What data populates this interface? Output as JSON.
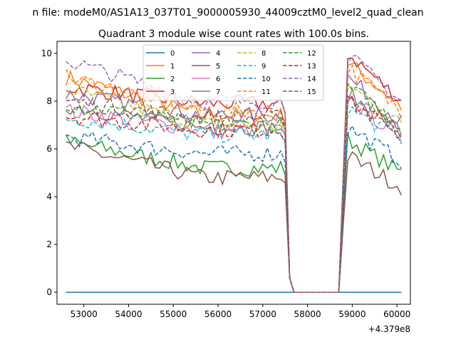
{
  "figure": {
    "suptitle": "n file: modeM0/AS1A13_037T01_9000005930_44009cztM0_level2_quad_clean",
    "offset_label": "+4.379e8"
  },
  "chart_data": {
    "type": "line",
    "title": "Quadrant 3 module wise count rates with 100.0s bins.",
    "xlabel": "",
    "ylabel": "",
    "x_offset": 437900000,
    "xlim": [
      52400,
      60300
    ],
    "ylim": [
      -0.5,
      10.5
    ],
    "xticks": [
      53000,
      54000,
      55000,
      56000,
      57000,
      58000,
      59000,
      60000
    ],
    "yticks": [
      0,
      2,
      4,
      6,
      8,
      10
    ],
    "grid": false,
    "legend_placement": "top-center",
    "legend_columns": 4,
    "gap": {
      "drop_start": 57500,
      "drop_end": 57700,
      "rise_start": 58700,
      "rise_end": 58900
    },
    "series": [
      {
        "name": "0",
        "color": "#1f77b4",
        "dash": "solid",
        "pre": [
          0,
          0
        ],
        "post": [
          0,
          0
        ]
      },
      {
        "name": "1",
        "color": "#ff7f0e",
        "dash": "solid",
        "pre": [
          9.0,
          7.4
        ],
        "post": [
          9.6,
          7.8
        ]
      },
      {
        "name": "2",
        "color": "#2ca02c",
        "dash": "solid",
        "pre": [
          6.3,
          5.2
        ],
        "post": [
          6.4,
          5.0
        ]
      },
      {
        "name": "3",
        "color": "#d62728",
        "dash": "solid",
        "pre": [
          8.6,
          7.9
        ],
        "post": [
          10.0,
          8.0
        ]
      },
      {
        "name": "4",
        "color": "#9467bd",
        "dash": "solid",
        "pre": [
          8.3,
          7.4
        ],
        "post": [
          9.0,
          7.1
        ]
      },
      {
        "name": "5",
        "color": "#8c564b",
        "dash": "solid",
        "pre": [
          6.1,
          4.8
        ],
        "post": [
          5.7,
          4.4
        ]
      },
      {
        "name": "6",
        "color": "#e377c2",
        "dash": "solid",
        "pre": [
          7.6,
          6.8
        ],
        "post": [
          8.2,
          6.4
        ]
      },
      {
        "name": "7",
        "color": "#7f7f7f",
        "dash": "solid",
        "pre": [
          7.8,
          6.9
        ],
        "post": [
          8.3,
          6.7
        ]
      },
      {
        "name": "8",
        "color": "#bcbd22",
        "dash": "dashed",
        "pre": [
          8.5,
          7.0
        ],
        "post": [
          8.7,
          7.0
        ]
      },
      {
        "name": "9",
        "color": "#17becf",
        "dash": "dashed",
        "pre": [
          7.3,
          6.6
        ],
        "post": [
          7.7,
          6.4
        ]
      },
      {
        "name": "10",
        "color": "#1f77b4",
        "dash": "dashed",
        "pre": [
          6.5,
          5.8
        ],
        "post": [
          6.9,
          5.5
        ]
      },
      {
        "name": "11",
        "color": "#ff7f0e",
        "dash": "dashed",
        "pre": [
          9.0,
          7.6
        ],
        "post": [
          9.4,
          7.6
        ]
      },
      {
        "name": "12",
        "color": "#2ca02c",
        "dash": "dashed",
        "pre": [
          7.9,
          7.0
        ],
        "post": [
          8.6,
          7.0
        ]
      },
      {
        "name": "13",
        "color": "#d62728",
        "dash": "dashed",
        "pre": [
          7.4,
          6.8
        ],
        "post": [
          8.0,
          6.6
        ]
      },
      {
        "name": "14",
        "color": "#9467bd",
        "dash": "dashed",
        "pre": [
          9.7,
          8.0
        ],
        "post": [
          9.9,
          8.0
        ]
      },
      {
        "name": "15",
        "color": "#8c564b",
        "dash": "dashed",
        "pre": [
          8.0,
          7.3
        ],
        "post": [
          8.2,
          6.8
        ]
      }
    ]
  }
}
